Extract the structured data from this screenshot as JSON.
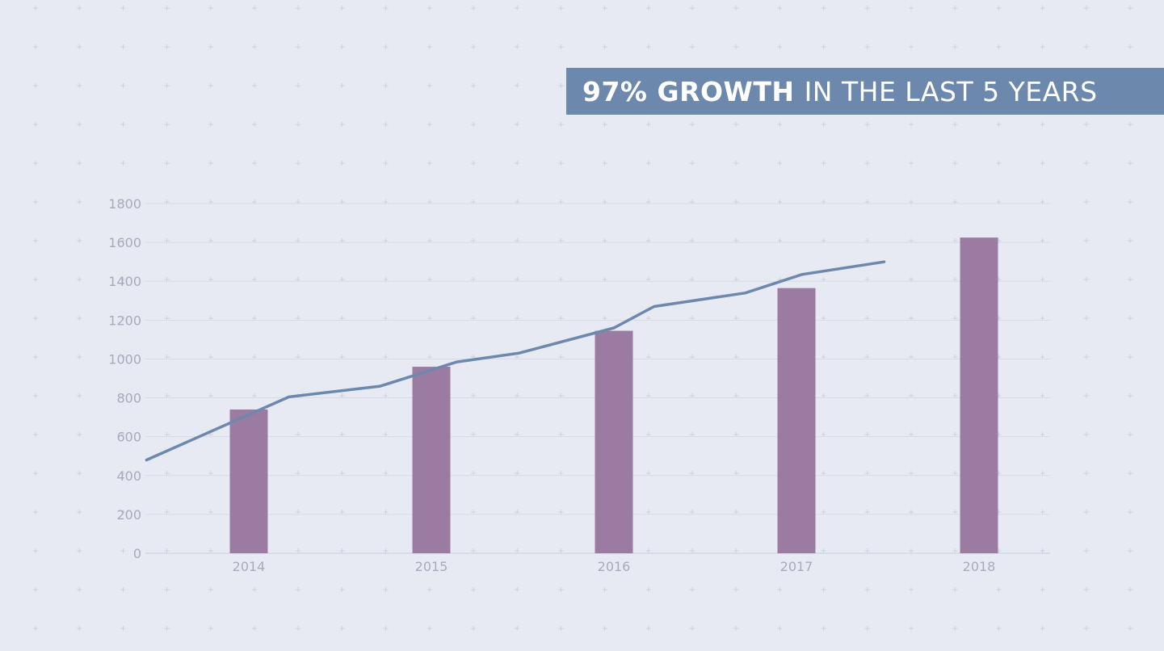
{
  "banner": {
    "bold_text": "97% GROWTH",
    "light_text": "IN THE LAST 5 YEARS"
  },
  "colors": {
    "background": "#e8eaf3",
    "banner": "#6d88ad",
    "bars": "#9c7ba2",
    "line": "#6d88ad",
    "grid": "#d8dbe7",
    "tick_text": "#a6abbd"
  },
  "chart_data": {
    "type": "bar",
    "title": "",
    "xlabel": "",
    "ylabel": "",
    "categories": [
      "2014",
      "2015",
      "2016",
      "2017",
      "2018"
    ],
    "ylim": [
      0,
      1800
    ],
    "yticks": [
      0,
      200,
      400,
      600,
      800,
      1000,
      1200,
      1400,
      1600,
      1800
    ],
    "grid": true,
    "series": [
      {
        "type": "bar",
        "values": [
          740,
          960,
          1145,
          1365,
          1625
        ]
      },
      {
        "type": "line",
        "x": [
          2013.44,
          2014.22,
          2014.72,
          2015.14,
          2015.48,
          2016.0,
          2016.22,
          2016.72,
          2017.03,
          2017.48
        ],
        "y": [
          480,
          805,
          860,
          985,
          1030,
          1160,
          1270,
          1340,
          1435,
          1500
        ]
      }
    ]
  }
}
